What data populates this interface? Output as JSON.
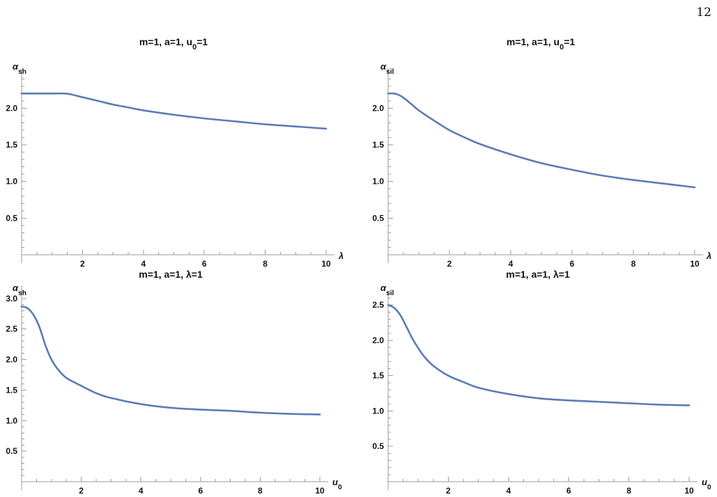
{
  "page": {
    "number": "12"
  },
  "chart_data": [
    {
      "type": "line",
      "title": "m=1, a=1, u",
      "title_sub": "0",
      "title_tail": "=1",
      "ylabel": "α",
      "ylabel_sub": "sh",
      "xlabel": "λ",
      "xlabel_sub": "",
      "xlim": [
        0,
        10
      ],
      "ylim": [
        0,
        2.45
      ],
      "xticks": [
        2,
        4,
        6,
        8,
        10
      ],
      "xtick_labels": [
        "2",
        "4",
        "6",
        "8",
        "10"
      ],
      "yticks": [
        0.5,
        1.0,
        1.5,
        2.0
      ],
      "ytick_labels": [
        "0.5",
        "1.0",
        "1.5",
        "2.0"
      ],
      "color": "#5b7bb3",
      "series": [
        {
          "x": [
            0,
            0.5,
            1.0,
            1.4,
            1.6,
            1.8,
            2.0,
            2.5,
            3.0,
            3.5,
            4.0,
            5.0,
            6.0,
            7.0,
            8.0,
            9.0,
            10.0
          ],
          "y": [
            2.2,
            2.2,
            2.2,
            2.2,
            2.19,
            2.17,
            2.15,
            2.1,
            2.05,
            2.01,
            1.97,
            1.91,
            1.86,
            1.82,
            1.78,
            1.75,
            1.72
          ]
        }
      ]
    },
    {
      "type": "line",
      "title": "m=1, a=1, u",
      "title_sub": "0",
      "title_tail": "=1",
      "ylabel": "α",
      "ylabel_sub": "sil",
      "xlabel": "λ",
      "xlabel_sub": "",
      "xlim": [
        0,
        10
      ],
      "ylim": [
        0,
        2.45
      ],
      "xticks": [
        2,
        4,
        6,
        8,
        10
      ],
      "xtick_labels": [
        "2",
        "4",
        "6",
        "8",
        "10"
      ],
      "yticks": [
        0.5,
        1.0,
        1.5,
        2.0
      ],
      "ytick_labels": [
        "0.5",
        "1.0",
        "1.5",
        "2.0"
      ],
      "color": "#5b7bb3",
      "series": [
        {
          "x": [
            0,
            0.2,
            0.4,
            0.6,
            0.8,
            1.0,
            1.5,
            2.0,
            2.5,
            3.0,
            4.0,
            5.0,
            6.0,
            7.0,
            8.0,
            9.0,
            10.0
          ],
          "y": [
            2.2,
            2.2,
            2.17,
            2.11,
            2.04,
            1.97,
            1.83,
            1.7,
            1.6,
            1.51,
            1.37,
            1.25,
            1.16,
            1.08,
            1.02,
            0.97,
            0.92
          ]
        }
      ]
    },
    {
      "type": "line",
      "title": "m=1, a=1, λ=1",
      "title_sub": "",
      "title_tail": "",
      "ylabel": "α",
      "ylabel_sub": "sh",
      "xlabel": "u",
      "xlabel_sub": "0",
      "xlim": [
        0,
        10
      ],
      "ylim": [
        0,
        3.1
      ],
      "xticks": [
        2,
        4,
        6,
        8,
        10
      ],
      "xtick_labels": [
        "2",
        "4",
        "6",
        "8",
        "10"
      ],
      "yticks": [
        0.5,
        1.0,
        1.5,
        2.0,
        2.5,
        3.0
      ],
      "ytick_labels": [
        "0.5",
        "1.0",
        "1.5",
        "2.0",
        "2.5",
        "3.0"
      ],
      "color": "#5b7bb3",
      "series": [
        {
          "x": [
            0,
            0.2,
            0.4,
            0.6,
            0.8,
            1.0,
            1.2,
            1.5,
            2.0,
            2.5,
            3.0,
            4.0,
            5.0,
            6.0,
            7.0,
            8.0,
            9.0,
            10.0
          ],
          "y": [
            2.87,
            2.84,
            2.73,
            2.53,
            2.23,
            2.0,
            1.85,
            1.7,
            1.57,
            1.45,
            1.37,
            1.27,
            1.21,
            1.18,
            1.16,
            1.13,
            1.11,
            1.1
          ]
        }
      ]
    },
    {
      "type": "line",
      "title": "m=1, a=1, λ=1",
      "title_sub": "",
      "title_tail": "",
      "ylabel": "α",
      "ylabel_sub": "sil",
      "xlabel": "u",
      "xlabel_sub": "0",
      "xlim": [
        0,
        10
      ],
      "ylim": [
        0,
        2.6
      ],
      "xticks": [
        2,
        4,
        6,
        8,
        10
      ],
      "xtick_labels": [
        "2",
        "4",
        "6",
        "8",
        "10"
      ],
      "yticks": [
        0.5,
        1.0,
        1.5,
        2.0,
        2.5
      ],
      "ytick_labels": [
        "0.5",
        "1.0",
        "1.5",
        "2.0",
        "2.5"
      ],
      "color": "#5b7bb3",
      "series": [
        {
          "x": [
            0,
            0.2,
            0.4,
            0.6,
            0.8,
            1.0,
            1.2,
            1.5,
            2.0,
            2.5,
            3.0,
            4.0,
            5.0,
            6.0,
            7.0,
            8.0,
            9.0,
            10.0
          ],
          "y": [
            2.5,
            2.46,
            2.36,
            2.2,
            2.03,
            1.89,
            1.77,
            1.64,
            1.5,
            1.41,
            1.33,
            1.24,
            1.18,
            1.15,
            1.13,
            1.11,
            1.09,
            1.08
          ]
        }
      ]
    }
  ]
}
